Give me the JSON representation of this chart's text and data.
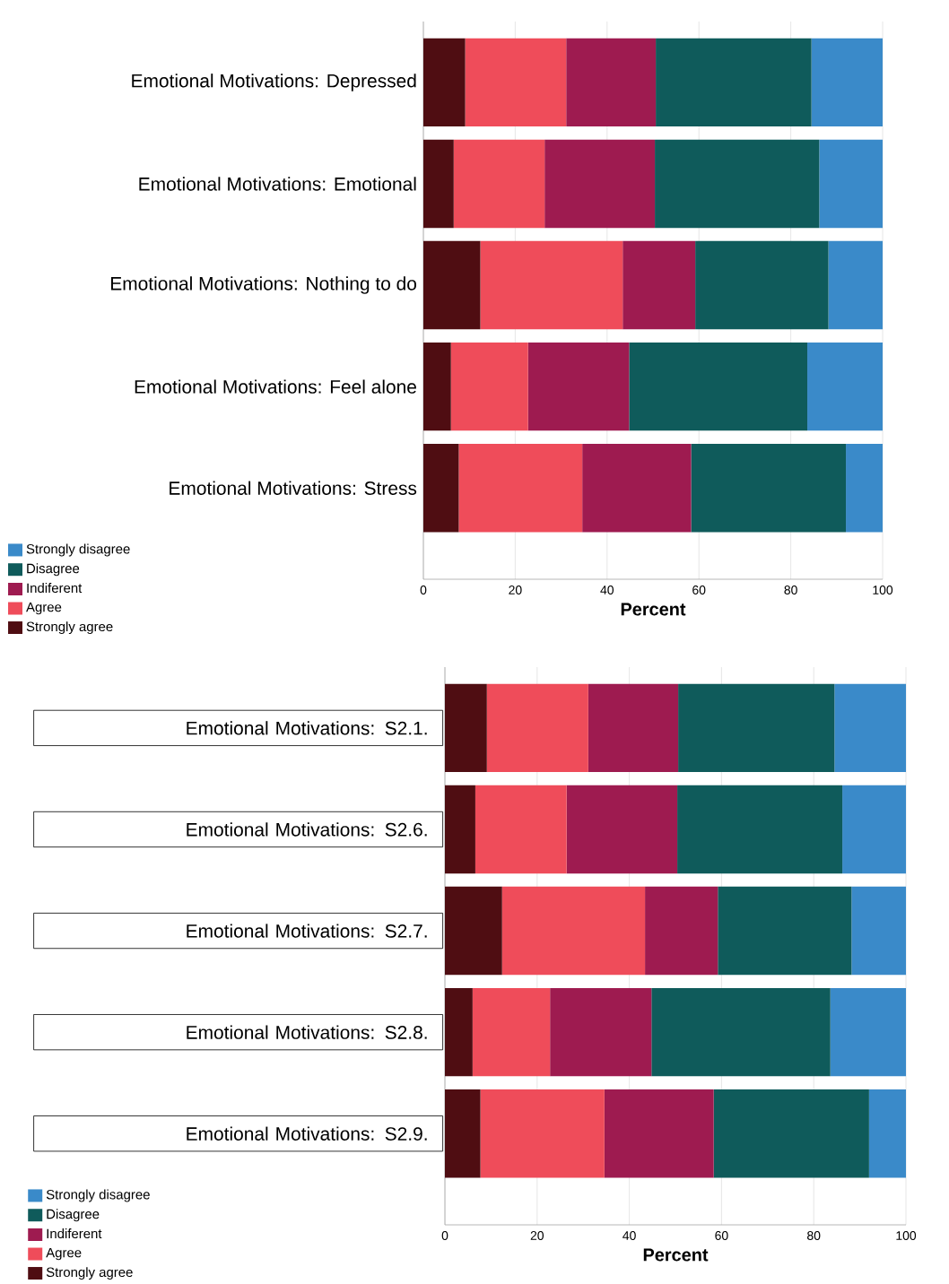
{
  "chart_data": [
    {
      "type": "bar",
      "orientation": "horizontal",
      "stacked": true,
      "categories": [
        "Emotional Motivations: Depressed",
        "Emotional Motivations: Emotional",
        "Emotional Motivations: Nothing to do",
        "Emotional Motivations: Feel alone",
        "Emotional Motivations: Stress"
      ],
      "xlabel": "Percent",
      "xlim": [
        0,
        100
      ],
      "xticks": [
        0,
        20,
        40,
        60,
        80,
        100
      ],
      "grid": "x",
      "legend": "bottom left",
      "series": [
        {
          "name": "Strongly agree",
          "color": "#4f0d12",
          "values": [
            9.1,
            6.6,
            12.4,
            6.0,
            7.7
          ]
        },
        {
          "name": "Agree",
          "color": "#ef4c5a",
          "values": [
            22.0,
            19.8,
            31.0,
            16.8,
            26.9
          ]
        },
        {
          "name": "Indiferent",
          "color": "#9e1b50",
          "values": [
            19.5,
            24.0,
            15.8,
            22.0,
            23.7
          ]
        },
        {
          "name": "Disagree",
          "color": "#0f5b5b",
          "values": [
            33.9,
            35.8,
            29.0,
            38.8,
            33.7
          ]
        },
        {
          "name": "Strongly disagree",
          "color": "#3a8ac9",
          "values": [
            15.5,
            13.8,
            11.8,
            16.4,
            8.0
          ]
        }
      ]
    },
    {
      "type": "bar",
      "orientation": "horizontal",
      "stacked": true,
      "categories": [
        "Emotional Motivations: S2.1.",
        "Emotional Motivations: S2.6.",
        "Emotional Motivations: S2.7.",
        "Emotional Motivations: S2.8.",
        "Emotional Motivations: S2.9."
      ],
      "xlabel": "Percent",
      "xlim": [
        0,
        100
      ],
      "xticks": [
        0,
        20,
        40,
        60,
        80,
        100
      ],
      "grid": "x",
      "legend": "bottom left",
      "series": [
        {
          "name": "Strongly agree",
          "color": "#4f0d12",
          "values": [
            9.1,
            6.6,
            12.4,
            6.0,
            7.7
          ]
        },
        {
          "name": "Agree",
          "color": "#ef4c5a",
          "values": [
            22.0,
            19.8,
            31.0,
            16.8,
            26.9
          ]
        },
        {
          "name": "Indiferent",
          "color": "#9e1b50",
          "values": [
            19.5,
            24.0,
            15.8,
            22.0,
            23.7
          ]
        },
        {
          "name": "Disagree",
          "color": "#0f5b5b",
          "values": [
            33.9,
            35.8,
            29.0,
            38.8,
            33.7
          ]
        },
        {
          "name": "Strongly disagree",
          "color": "#3a8ac9",
          "values": [
            15.5,
            13.8,
            11.8,
            16.4,
            8.0
          ]
        }
      ]
    }
  ]
}
